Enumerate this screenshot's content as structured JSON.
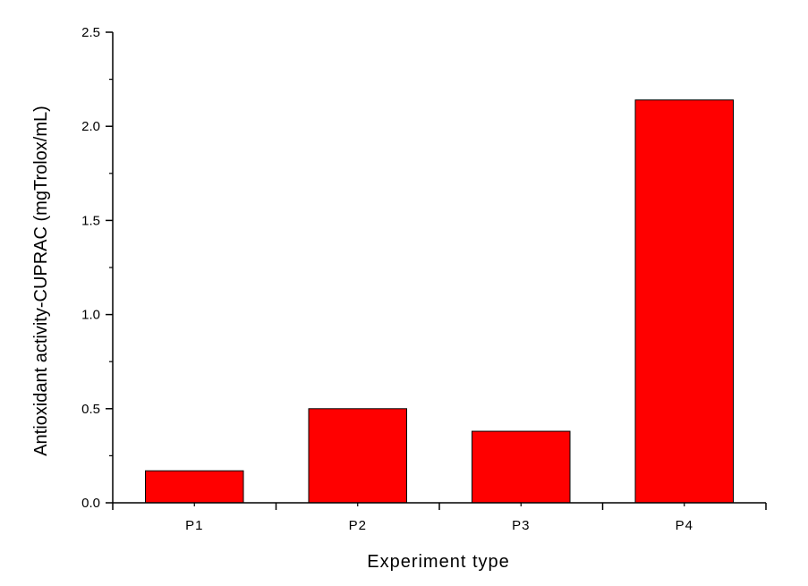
{
  "chart_data": {
    "type": "bar",
    "title": "",
    "xlabel": "Experiment type",
    "ylabel": "Antioxidant activity-CUPRAC (mgTrolox/mL)",
    "categories": [
      "P1",
      "P2",
      "P3",
      "P4"
    ],
    "values": [
      0.17,
      0.5,
      0.38,
      2.14
    ],
    "ylim": [
      0,
      2.5
    ],
    "yticks": [
      "0.0",
      "0.5",
      "1.0",
      "1.5",
      "2.0",
      "2.5"
    ],
    "grid": false,
    "legend": "none",
    "colors": {
      "bar": "#ff0000",
      "bar_edge": "#000000",
      "axis": "#000000"
    }
  }
}
